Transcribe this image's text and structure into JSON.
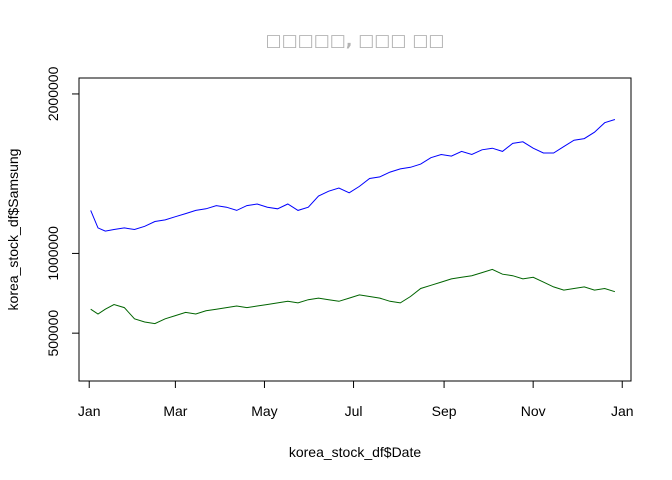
{
  "chart_data": {
    "type": "line",
    "title": "□□□□□, □□□ □□",
    "xlabel": "korea_stock_df$Date",
    "ylabel": "korea_stock_df$Samsung",
    "x_ticks": [
      "Jan",
      "Mar",
      "May",
      "Jul",
      "Sep",
      "Nov",
      "Jan"
    ],
    "x_tick_dates": [
      "2019-01-01",
      "2019-03-01",
      "2019-05-01",
      "2019-07-01",
      "2019-09-01",
      "2019-11-01",
      "2020-01-01"
    ],
    "y_ticks": [
      500000,
      1000000,
      2000000
    ],
    "xlim": [
      "2018-12-25",
      "2020-01-07"
    ],
    "ylim": [
      200000,
      2100000
    ],
    "grid": false,
    "legend": "none",
    "series": [
      {
        "color": "#0000ff",
        "x": [
          "2019-01-02",
          "2019-01-07",
          "2019-01-12",
          "2019-01-18",
          "2019-01-25",
          "2019-02-01",
          "2019-02-08",
          "2019-02-15",
          "2019-02-22",
          "2019-03-01",
          "2019-03-08",
          "2019-03-15",
          "2019-03-22",
          "2019-03-29",
          "2019-04-05",
          "2019-04-12",
          "2019-04-19",
          "2019-04-26",
          "2019-05-03",
          "2019-05-10",
          "2019-05-17",
          "2019-05-24",
          "2019-05-31",
          "2019-06-07",
          "2019-06-14",
          "2019-06-21",
          "2019-06-28",
          "2019-07-05",
          "2019-07-12",
          "2019-07-19",
          "2019-07-26",
          "2019-08-02",
          "2019-08-09",
          "2019-08-16",
          "2019-08-23",
          "2019-08-30",
          "2019-09-06",
          "2019-09-13",
          "2019-09-20",
          "2019-09-27",
          "2019-10-04",
          "2019-10-11",
          "2019-10-18",
          "2019-10-25",
          "2019-11-01",
          "2019-11-08",
          "2019-11-15",
          "2019-11-22",
          "2019-11-29",
          "2019-12-06",
          "2019-12-13",
          "2019-12-20",
          "2019-12-27"
        ],
        "values": [
          1270000,
          1160000,
          1140000,
          1150000,
          1160000,
          1150000,
          1170000,
          1200000,
          1210000,
          1230000,
          1250000,
          1270000,
          1280000,
          1300000,
          1290000,
          1270000,
          1300000,
          1310000,
          1290000,
          1280000,
          1310000,
          1270000,
          1290000,
          1360000,
          1390000,
          1410000,
          1380000,
          1420000,
          1470000,
          1480000,
          1510000,
          1530000,
          1540000,
          1560000,
          1600000,
          1620000,
          1610000,
          1640000,
          1620000,
          1650000,
          1660000,
          1640000,
          1690000,
          1700000,
          1660000,
          1630000,
          1630000,
          1670000,
          1710000,
          1720000,
          1760000,
          1820000,
          1840000
        ]
      },
      {
        "color": "#006400",
        "x": [
          "2019-01-02",
          "2019-01-07",
          "2019-01-12",
          "2019-01-18",
          "2019-01-25",
          "2019-02-01",
          "2019-02-08",
          "2019-02-15",
          "2019-02-22",
          "2019-03-01",
          "2019-03-08",
          "2019-03-15",
          "2019-03-22",
          "2019-03-29",
          "2019-04-05",
          "2019-04-12",
          "2019-04-19",
          "2019-04-26",
          "2019-05-03",
          "2019-05-10",
          "2019-05-17",
          "2019-05-24",
          "2019-05-31",
          "2019-06-07",
          "2019-06-14",
          "2019-06-21",
          "2019-06-28",
          "2019-07-05",
          "2019-07-12",
          "2019-07-19",
          "2019-07-26",
          "2019-08-02",
          "2019-08-09",
          "2019-08-16",
          "2019-08-23",
          "2019-08-30",
          "2019-09-06",
          "2019-09-13",
          "2019-09-20",
          "2019-09-27",
          "2019-10-04",
          "2019-10-11",
          "2019-10-18",
          "2019-10-25",
          "2019-11-01",
          "2019-11-08",
          "2019-11-15",
          "2019-11-22",
          "2019-11-29",
          "2019-12-06",
          "2019-12-13",
          "2019-12-20",
          "2019-12-27"
        ],
        "values": [
          650000,
          620000,
          650000,
          680000,
          660000,
          590000,
          570000,
          560000,
          590000,
          610000,
          630000,
          620000,
          640000,
          650000,
          660000,
          670000,
          660000,
          670000,
          680000,
          690000,
          700000,
          690000,
          710000,
          720000,
          710000,
          700000,
          720000,
          740000,
          730000,
          720000,
          700000,
          690000,
          730000,
          780000,
          800000,
          820000,
          840000,
          850000,
          860000,
          880000,
          900000,
          870000,
          860000,
          840000,
          850000,
          820000,
          790000,
          770000,
          780000,
          790000,
          770000,
          780000,
          760000
        ]
      }
    ]
  }
}
